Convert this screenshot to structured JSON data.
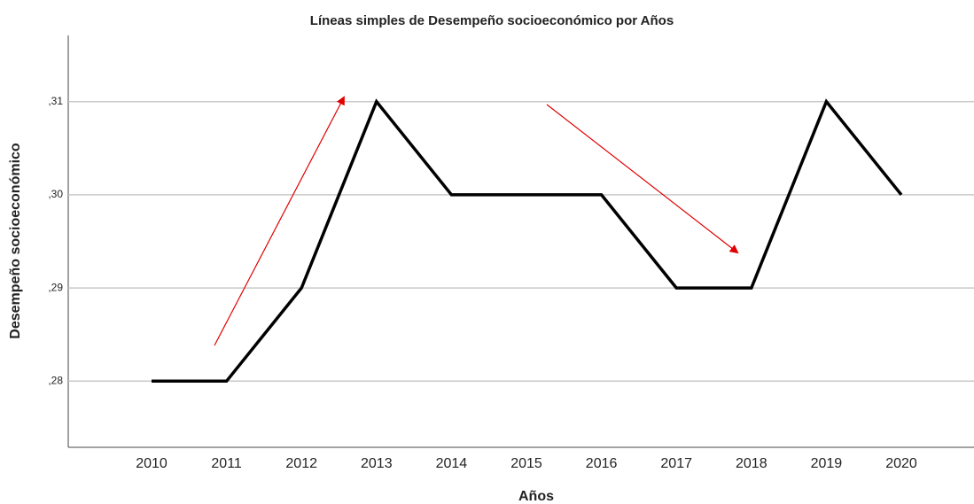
{
  "chart_data": {
    "type": "line",
    "title": "Líneas simples de Desempeño socioeconómico por Años",
    "x_label": "Años",
    "y_label": "Desempeño socioeconómico",
    "categories": [
      "2010",
      "2011",
      "2012",
      "2013",
      "2014",
      "2015",
      "2016",
      "2017",
      "2018",
      "2019",
      "2020"
    ],
    "values": [
      0.28,
      0.28,
      0.29,
      0.31,
      0.3,
      0.3,
      0.3,
      0.29,
      0.29,
      0.31,
      0.3
    ],
    "color": "#000000",
    "ylim": [
      0.2729,
      0.3171
    ],
    "yticks": [
      {
        "value": 0.28,
        "label": ",28"
      },
      {
        "value": 0.29,
        "label": ",29"
      },
      {
        "value": 0.3,
        "label": ",30"
      },
      {
        "value": 0.31,
        "label": ",31"
      }
    ],
    "grid": true
  }
}
